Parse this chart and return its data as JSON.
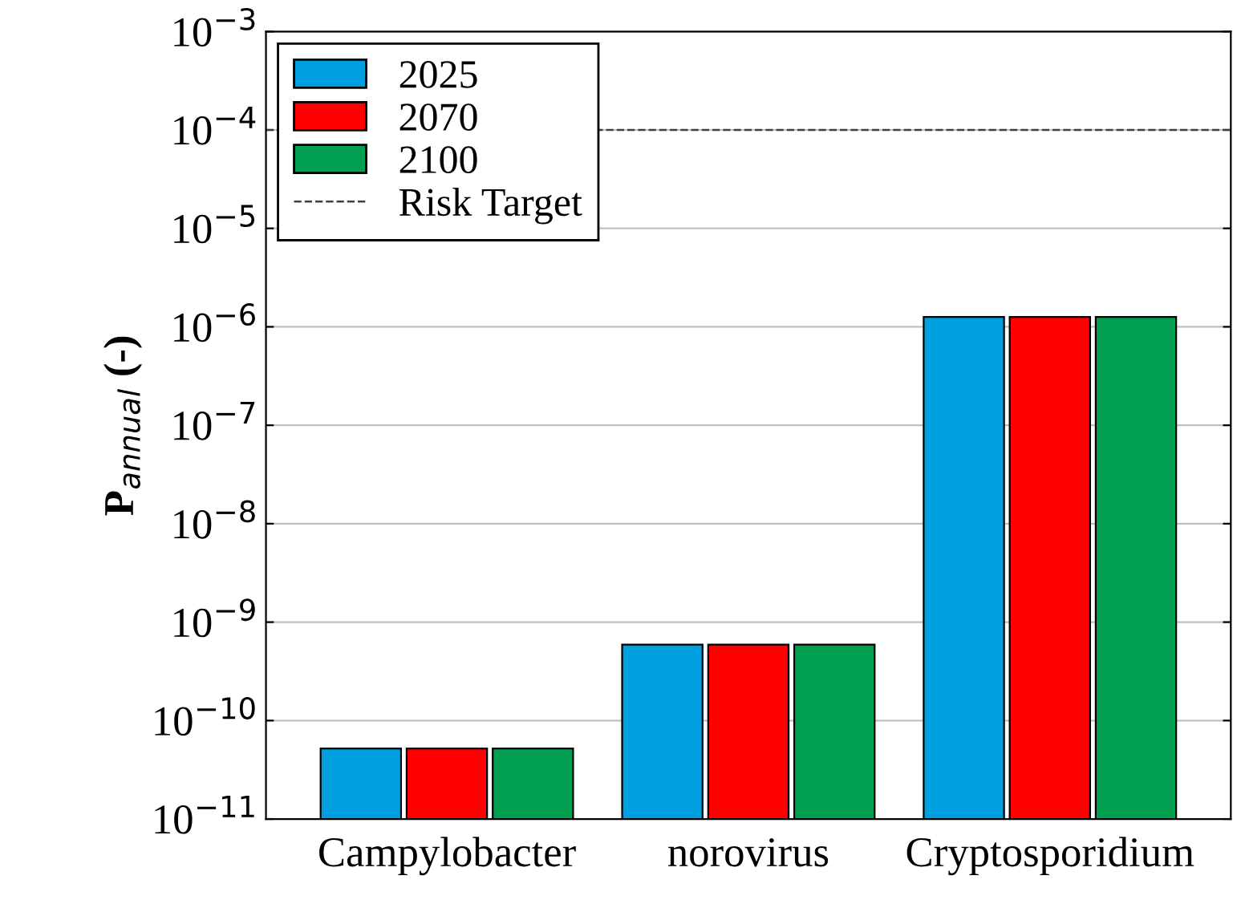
{
  "chart_data": {
    "type": "bar",
    "ylabel": "P$_{annual}$ (-)",
    "categories": [
      "Campylobacter",
      "norovirus",
      "Cryptosporidium"
    ],
    "series": [
      {
        "name": "2025",
        "color": "#00a0e0",
        "values": [
          5.2e-11,
          5.9e-10,
          1.26e-06
        ]
      },
      {
        "name": "2070",
        "color": "#ff0000",
        "values": [
          5.2e-11,
          5.9e-10,
          1.26e-06
        ]
      },
      {
        "name": "2100",
        "color": "#00a050",
        "values": [
          5.2e-11,
          5.9e-10,
          1.26e-06
        ]
      }
    ],
    "log": "y",
    "ylim": [
      1e-11,
      0.001
    ],
    "yticks": [
      {
        "value": 1e-11,
        "label": "10$^{−11}$"
      },
      {
        "value": 1e-10,
        "label": "10$^{−10}$"
      },
      {
        "value": 1e-09,
        "label": "10$^{−9}$"
      },
      {
        "value": 1e-08,
        "label": "10$^{−8}$"
      },
      {
        "value": 1e-07,
        "label": "10$^{−7}$"
      },
      {
        "value": 1e-06,
        "label": "10$^{−6}$"
      },
      {
        "value": 1e-05,
        "label": "10$^{−5}$"
      },
      {
        "value": 0.0001,
        "label": "10$^{−4}$"
      },
      {
        "value": 0.001,
        "label": "10$^{−3}$"
      }
    ],
    "ref_lines": [
      {
        "axis": "y",
        "value": 0.0001,
        "label": "Risk Target",
        "color": "#404040",
        "line_style": "dashed"
      }
    ],
    "grid": "y",
    "legend": "top left"
  }
}
